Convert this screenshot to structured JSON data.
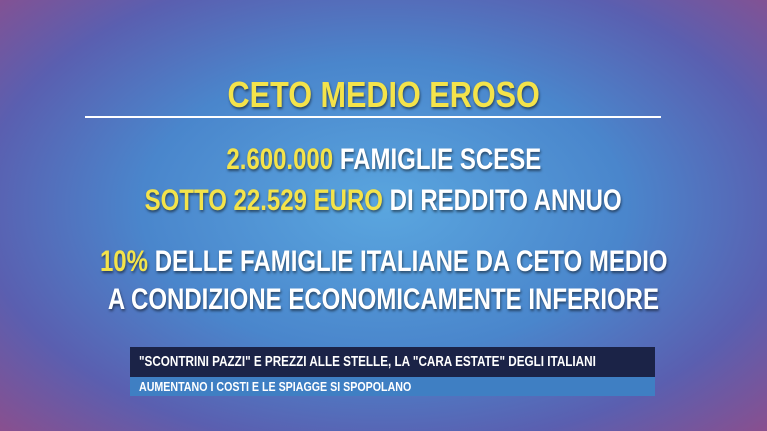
{
  "headline": {
    "title": "CETO MEDIO EROSO"
  },
  "body": {
    "lines": [
      [
        {
          "text": "2.600.000",
          "highlight": true
        },
        {
          "text": "FAMIGLIE SCESE",
          "highlight": false
        }
      ],
      [
        {
          "text": "SOTTO 22.529 EURO",
          "highlight": true
        },
        {
          "text": "DI REDDITO ANNUO",
          "highlight": false
        }
      ],
      [
        {
          "text": "10%",
          "highlight": true
        },
        {
          "text": "DELLE FAMIGLIE ITALIANE DA CETO MEDIO",
          "highlight": false
        }
      ],
      [
        {
          "text": "A CONDIZIONE ECONOMICAMENTE INFERIORE",
          "highlight": false
        }
      ]
    ]
  },
  "ticker": {
    "main": "\"SCONTRINI PAZZI\" E PREZZI ALLE STELLE, LA \"CARA ESTATE\" DEGLI ITALIANI",
    "sub": "AUMENTANO I COSTI E LE SPIAGGE SI SPOPOLANO"
  }
}
